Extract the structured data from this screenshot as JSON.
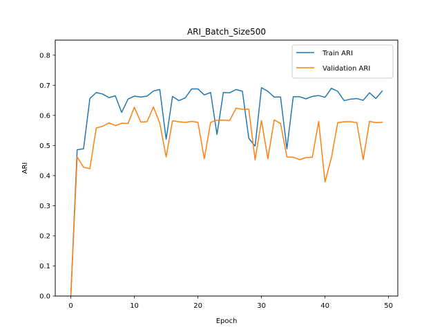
{
  "chart_data": {
    "type": "line",
    "title": "ARI_Batch_Size500",
    "xlabel": "Epoch",
    "ylabel": "ARI",
    "xlim": [
      -2.45,
      51.45
    ],
    "ylim": [
      0.0,
      0.85
    ],
    "xticks": [
      0,
      10,
      20,
      30,
      40,
      50
    ],
    "yticks": [
      0.0,
      0.1,
      0.2,
      0.3,
      0.4,
      0.5,
      0.6,
      0.7,
      0.8
    ],
    "xtick_labels": [
      "0",
      "10",
      "20",
      "30",
      "40",
      "50"
    ],
    "ytick_labels": [
      "0.0",
      "0.1",
      "0.2",
      "0.3",
      "0.4",
      "0.5",
      "0.6",
      "0.7",
      "0.8"
    ],
    "grid": false,
    "legend_position": "top-right",
    "x": [
      0,
      1,
      2,
      3,
      4,
      5,
      6,
      7,
      8,
      9,
      10,
      11,
      12,
      13,
      14,
      15,
      16,
      17,
      18,
      19,
      20,
      21,
      22,
      23,
      24,
      25,
      26,
      27,
      28,
      29,
      30,
      31,
      32,
      33,
      34,
      35,
      36,
      37,
      38,
      39,
      40,
      41,
      42,
      43,
      44,
      45,
      46,
      47,
      48,
      49
    ],
    "series": [
      {
        "name": "Train ARI",
        "color": "#1f77b4",
        "values": [
          0.0,
          0.486,
          0.489,
          0.656,
          0.676,
          0.671,
          0.659,
          0.665,
          0.61,
          0.654,
          0.664,
          0.661,
          0.664,
          0.681,
          0.686,
          0.521,
          0.663,
          0.649,
          0.658,
          0.688,
          0.688,
          0.668,
          0.676,
          0.537,
          0.676,
          0.675,
          0.686,
          0.68,
          0.524,
          0.498,
          0.692,
          0.68,
          0.661,
          0.661,
          0.489,
          0.662,
          0.662,
          0.655,
          0.663,
          0.666,
          0.66,
          0.69,
          0.68,
          0.649,
          0.654,
          0.656,
          0.65,
          0.675,
          0.656,
          0.681
        ]
      },
      {
        "name": "Validation ARI",
        "color": "#ff7f0e",
        "values": [
          0.0,
          0.462,
          0.428,
          0.423,
          0.558,
          0.564,
          0.575,
          0.566,
          0.574,
          0.573,
          0.627,
          0.578,
          0.579,
          0.628,
          0.574,
          0.462,
          0.582,
          0.579,
          0.577,
          0.58,
          0.577,
          0.456,
          0.577,
          0.584,
          0.584,
          0.583,
          0.624,
          0.62,
          0.621,
          0.452,
          0.583,
          0.456,
          0.585,
          0.573,
          0.462,
          0.461,
          0.453,
          0.46,
          0.461,
          0.58,
          0.379,
          0.459,
          0.576,
          0.579,
          0.579,
          0.576,
          0.453,
          0.58,
          0.576,
          0.577
        ]
      }
    ]
  }
}
